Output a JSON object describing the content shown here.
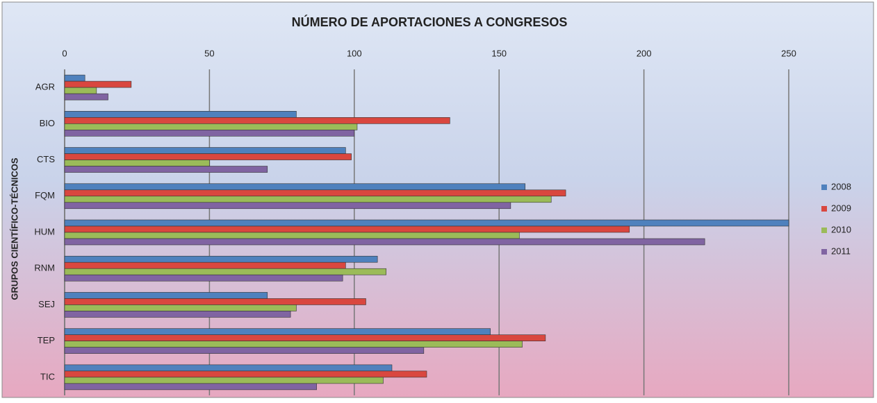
{
  "chart_data": {
    "type": "hbar",
    "title": "NÚMERO DE APORTACIONES A CONGRESOS",
    "y_label": "GRUPOS CIENTÍFICO-TÉCNICOS",
    "categories": [
      "AGR",
      "BIO",
      "CTS",
      "FQM",
      "HUM",
      "RNM",
      "SEJ",
      "TEP",
      "TIC"
    ],
    "series": [
      {
        "name": "2008",
        "color": "#4f81bd",
        "values": [
          7,
          80,
          97,
          159,
          250,
          108,
          70,
          147,
          113
        ]
      },
      {
        "name": "2009",
        "color": "#d9473f",
        "values": [
          23,
          133,
          99,
          173,
          195,
          97,
          104,
          166,
          125
        ]
      },
      {
        "name": "2010",
        "color": "#9bbb59",
        "values": [
          11,
          101,
          50,
          168,
          157,
          111,
          80,
          158,
          110
        ]
      },
      {
        "name": "2011",
        "color": "#8064a2",
        "values": [
          15,
          100,
          70,
          154,
          221,
          96,
          78,
          124,
          87
        ]
      }
    ],
    "xlim": [
      0,
      250
    ],
    "xticks": [
      0,
      50,
      100,
      150,
      200,
      250
    ],
    "grid": true,
    "legend": "right"
  }
}
